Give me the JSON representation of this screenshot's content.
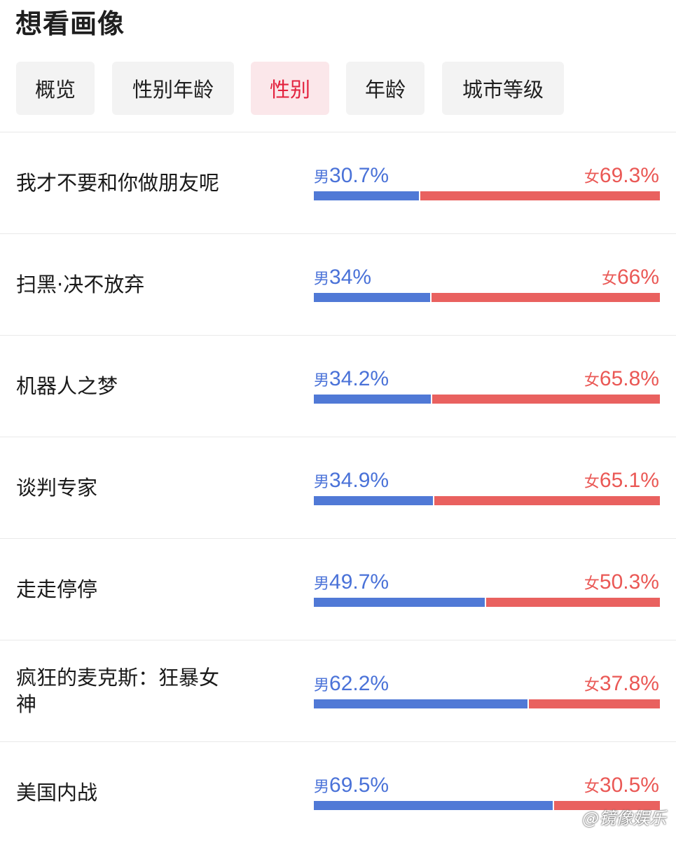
{
  "page_title": "想看画像",
  "tabs": [
    {
      "label": "概览",
      "active": false
    },
    {
      "label": "性别年龄",
      "active": false
    },
    {
      "label": "性别",
      "active": true
    },
    {
      "label": "年龄",
      "active": false
    },
    {
      "label": "城市等级",
      "active": false
    }
  ],
  "male_label": "男",
  "female_label": "女",
  "colors": {
    "male": "#5079d6",
    "female": "#e9615f",
    "active_tab_text": "#e3223e",
    "active_tab_bg": "#fbe7ea"
  },
  "movies": [
    {
      "name": "我才不要和你做朋友呢",
      "male": "30.7%",
      "female": "69.3%",
      "male_fraction": 0.307
    },
    {
      "name": "扫黑·决不放弃",
      "male": "34%",
      "female": "66%",
      "male_fraction": 0.34
    },
    {
      "name": "机器人之梦",
      "male": "34.2%",
      "female": "65.8%",
      "male_fraction": 0.342
    },
    {
      "name": "谈判专家",
      "male": "34.9%",
      "female": "65.1%",
      "male_fraction": 0.349
    },
    {
      "name": "走走停停",
      "male": "49.7%",
      "female": "50.3%",
      "male_fraction": 0.497
    },
    {
      "name": "疯狂的麦克斯：狂暴女神",
      "male": "62.2%",
      "female": "37.8%",
      "male_fraction": 0.622
    },
    {
      "name": "美国内战",
      "male": "69.5%",
      "female": "30.5%",
      "male_fraction": 0.695
    }
  ],
  "watermark": "@镜像娱乐"
}
